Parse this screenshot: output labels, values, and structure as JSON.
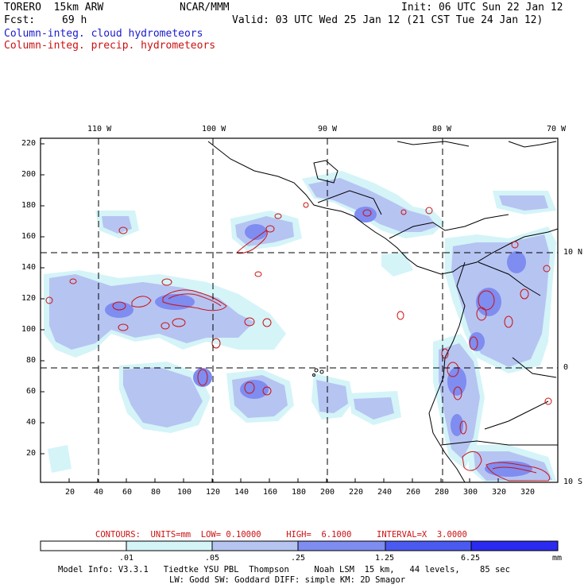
{
  "header": {
    "model": "TORERO  15km ARW",
    "org": "NCAR/MMM",
    "init": "Init: 06 UTC Sun 22 Jan 12",
    "fcst_label": "Fcst:",
    "fcst_value": "69 h",
    "valid": "Valid: 03 UTC Wed 25 Jan 12 (21 CST Tue 24 Jan 12)",
    "legend_cloud": "Column-integ. cloud hydrometeors",
    "legend_precip": "Column-integ. precip. hydrometeors"
  },
  "colors": {
    "cloud": "#1a1acc",
    "precip": "#cc1111",
    "shade_1": "#d4f4f8",
    "shade_2": "#b6c4f2",
    "shade_3": "#7f8cf0",
    "shade_4": "#4a5af0",
    "shade_5": "#2a2af0"
  },
  "axes": {
    "top_lon": [
      "110 W",
      "100 W",
      "90 W",
      "80 W",
      "70 W"
    ],
    "right_lat": [
      "10 N",
      "0",
      "10 S"
    ],
    "y_ticks": [
      "220",
      "200",
      "180",
      "160",
      "140",
      "120",
      "100",
      "80",
      "60",
      "40",
      "20"
    ],
    "x_ticks": [
      "20",
      "40",
      "60",
      "80",
      "100",
      "120",
      "140",
      "160",
      "180",
      "200",
      "220",
      "240",
      "260",
      "280",
      "300",
      "320"
    ]
  },
  "footer": {
    "contours": "CONTOURS:  UNITS=mm  LOW= 0.10000     HIGH=  6.1000     INTERVAL=X  3.0000",
    "colorbar_labels": [
      ".01",
      ".05",
      ".25",
      "1.25",
      "6.25"
    ],
    "colorbar_unit": "mm",
    "model_info_1": "Model Info: V3.3.1   Tiedtke YSU PBL  Thompson     Noah LSM  15 km,   44 levels,    85 sec",
    "model_info_2": "LW: Godd SW: Goddard DIFF: simple KM: 2D Smagor"
  }
}
